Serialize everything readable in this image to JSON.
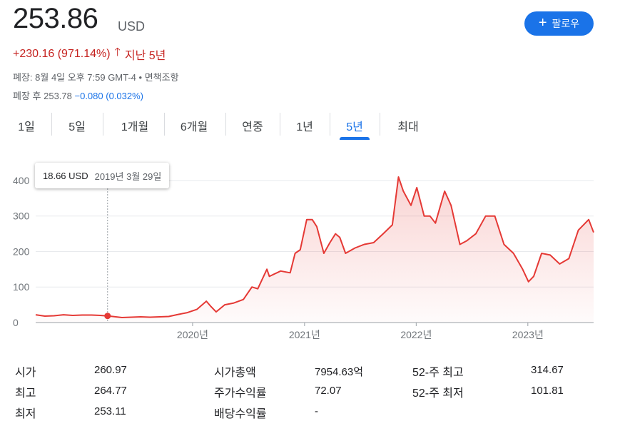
{
  "quote": {
    "price": "253.86",
    "currency": "USD",
    "change": "+230.16 (971.14%)",
    "period": "지난 5년",
    "closed_info": "폐장: 8월 4일 오후 7:59 GMT-4 • 면책조항",
    "after_label": "폐장 후 253.78",
    "after_change": "−0.080 (0.032%)"
  },
  "follow_button": {
    "label": "팔로우"
  },
  "tabs": [
    {
      "label": "1일",
      "active": false
    },
    {
      "label": "5일",
      "active": false
    },
    {
      "label": "1개월",
      "active": false
    },
    {
      "label": "6개월",
      "active": false
    },
    {
      "label": "연중",
      "active": false
    },
    {
      "label": "1년",
      "active": false
    },
    {
      "label": "5년",
      "active": true
    },
    {
      "label": "최대",
      "active": false
    }
  ],
  "tooltip": {
    "value": "18.66 USD",
    "date": "2019년 3월 29일"
  },
  "colors": {
    "line": "#e53935",
    "accent": "#1a73e8",
    "negative": "#c5221f"
  },
  "chart_data": {
    "type": "area",
    "y_ticks": [
      0,
      100,
      200,
      300,
      400
    ],
    "ylim": [
      0,
      430
    ],
    "x_range": [
      "2018-08-06",
      "2023-08-04"
    ],
    "x_ticks": [
      {
        "date": "2020-01-01",
        "label": "2020년"
      },
      {
        "date": "2021-01-01",
        "label": "2021년"
      },
      {
        "date": "2022-01-01",
        "label": "2022년"
      },
      {
        "date": "2023-01-01",
        "label": "2023년"
      }
    ],
    "highlight": {
      "date": "2019-03-29",
      "value": 18.66
    },
    "grid": true,
    "series": [
      {
        "points": [
          [
            "2018-08-06",
            22
          ],
          [
            "2018-09-05",
            18
          ],
          [
            "2018-10-05",
            19
          ],
          [
            "2018-11-05",
            22
          ],
          [
            "2018-12-05",
            20
          ],
          [
            "2019-01-05",
            21
          ],
          [
            "2019-02-05",
            21
          ],
          [
            "2019-03-05",
            20
          ],
          [
            "2019-03-29",
            18.66
          ],
          [
            "2019-04-15",
            17
          ],
          [
            "2019-05-15",
            14
          ],
          [
            "2019-06-15",
            15
          ],
          [
            "2019-07-15",
            16
          ],
          [
            "2019-08-15",
            15
          ],
          [
            "2019-09-15",
            16
          ],
          [
            "2019-10-15",
            17
          ],
          [
            "2019-11-15",
            23
          ],
          [
            "2019-12-15",
            28
          ],
          [
            "2020-01-15",
            37
          ],
          [
            "2020-02-15",
            60
          ],
          [
            "2020-03-01",
            45
          ],
          [
            "2020-03-18",
            30
          ],
          [
            "2020-04-15",
            50
          ],
          [
            "2020-05-15",
            55
          ],
          [
            "2020-06-15",
            65
          ],
          [
            "2020-07-13",
            100
          ],
          [
            "2020-08-01",
            95
          ],
          [
            "2020-08-31",
            150
          ],
          [
            "2020-09-08",
            130
          ],
          [
            "2020-10-15",
            145
          ],
          [
            "2020-11-15",
            140
          ],
          [
            "2020-12-01",
            195
          ],
          [
            "2020-12-18",
            205
          ],
          [
            "2021-01-08",
            290
          ],
          [
            "2021-01-26",
            290
          ],
          [
            "2021-02-10",
            270
          ],
          [
            "2021-03-05",
            195
          ],
          [
            "2021-03-25",
            225
          ],
          [
            "2021-04-12",
            250
          ],
          [
            "2021-04-26",
            240
          ],
          [
            "2021-05-15",
            195
          ],
          [
            "2021-06-15",
            210
          ],
          [
            "2021-07-15",
            220
          ],
          [
            "2021-08-15",
            225
          ],
          [
            "2021-09-15",
            250
          ],
          [
            "2021-10-15",
            275
          ],
          [
            "2021-11-04",
            410
          ],
          [
            "2021-11-20",
            370
          ],
          [
            "2021-12-15",
            330
          ],
          [
            "2022-01-03",
            380
          ],
          [
            "2022-01-27",
            300
          ],
          [
            "2022-02-15",
            300
          ],
          [
            "2022-03-05",
            280
          ],
          [
            "2022-04-04",
            370
          ],
          [
            "2022-04-25",
            330
          ],
          [
            "2022-05-24",
            220
          ],
          [
            "2022-06-15",
            230
          ],
          [
            "2022-07-15",
            250
          ],
          [
            "2022-08-16",
            300
          ],
          [
            "2022-09-15",
            300
          ],
          [
            "2022-10-15",
            220
          ],
          [
            "2022-11-15",
            195
          ],
          [
            "2022-12-15",
            150
          ],
          [
            "2023-01-03",
            115
          ],
          [
            "2023-01-20",
            130
          ],
          [
            "2023-02-15",
            195
          ],
          [
            "2023-03-15",
            190
          ],
          [
            "2023-04-15",
            165
          ],
          [
            "2023-05-15",
            180
          ],
          [
            "2023-06-15",
            260
          ],
          [
            "2023-07-19",
            290
          ],
          [
            "2023-08-04",
            253.86
          ]
        ]
      }
    ]
  },
  "stats": {
    "col1": [
      {
        "label": "시가",
        "value": "260.97"
      },
      {
        "label": "최고",
        "value": "264.77"
      },
      {
        "label": "최저",
        "value": "253.11"
      }
    ],
    "col2": [
      {
        "label": "시가총액",
        "value": "7954.63억"
      },
      {
        "label": "주가수익률",
        "value": "72.07"
      },
      {
        "label": "배당수익률",
        "value": "-"
      }
    ],
    "col3": [
      {
        "label": "52-주 최고",
        "value": "314.67"
      },
      {
        "label": "52-주 최저",
        "value": "101.81"
      }
    ]
  }
}
